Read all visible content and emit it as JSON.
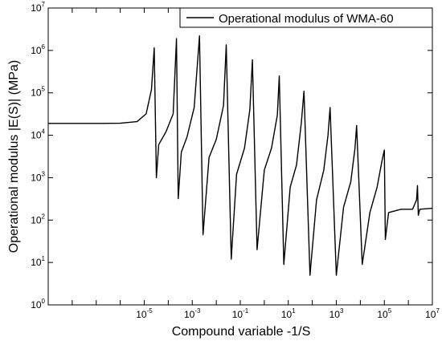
{
  "chart_data": {
    "type": "line",
    "title": "",
    "xlabel": "Compound variable -1/S",
    "ylabel": "Operational modulus |E(S)| (MPa)",
    "x_scale": "log",
    "y_scale": "log",
    "xlim": [
      1e-09,
      10000000.0
    ],
    "ylim": [
      1,
      10000000.0
    ],
    "x_ticks": [
      {
        "value": 1e-05,
        "base": "10",
        "exp": "-5"
      },
      {
        "value": 0.001,
        "base": "10",
        "exp": "-3"
      },
      {
        "value": 0.1,
        "base": "10",
        "exp": "-1"
      },
      {
        "value": 10.0,
        "base": "10",
        "exp": "1"
      },
      {
        "value": 1000.0,
        "base": "10",
        "exp": "3"
      },
      {
        "value": 100000.0,
        "base": "10",
        "exp": "5"
      },
      {
        "value": 10000000.0,
        "base": "10",
        "exp": "7"
      }
    ],
    "y_ticks": [
      {
        "value": 1,
        "base": "10",
        "exp": "0"
      },
      {
        "value": 10,
        "base": "10",
        "exp": "1"
      },
      {
        "value": 100.0,
        "base": "10",
        "exp": "2"
      },
      {
        "value": 1000.0,
        "base": "10",
        "exp": "3"
      },
      {
        "value": 10000.0,
        "base": "10",
        "exp": "4"
      },
      {
        "value": 100000.0,
        "base": "10",
        "exp": "5"
      },
      {
        "value": 1000000.0,
        "base": "10",
        "exp": "6"
      },
      {
        "value": 10000000.0,
        "base": "10",
        "exp": "7"
      }
    ],
    "grid": false,
    "legend_position": "top-right",
    "series": [
      {
        "name": "Operational modulus of  WMA-60",
        "color": "#000000",
        "points": [
          [
            1e-09,
            19000
          ],
          [
            1e-07,
            19000
          ],
          [
            1e-06,
            19200
          ],
          [
            5e-06,
            21000
          ],
          [
            1.2e-05,
            32000
          ],
          [
            2e-05,
            120000
          ],
          [
            2.6e-05,
            1150000
          ],
          [
            3.2e-05,
            1000
          ],
          [
            4e-05,
            6000
          ],
          [
            8e-05,
            12000
          ],
          [
            0.00016,
            32000
          ],
          [
            0.00022,
            1900000
          ],
          [
            0.00026,
            320
          ],
          [
            0.00035,
            4000
          ],
          [
            0.0006,
            9000
          ],
          [
            0.0012,
            45000
          ],
          [
            0.002,
            2200000
          ],
          [
            0.0028,
            45
          ],
          [
            0.005,
            3000
          ],
          [
            0.01,
            8000
          ],
          [
            0.02,
            50000
          ],
          [
            0.026,
            1350000
          ],
          [
            0.042,
            12
          ],
          [
            0.07,
            1200
          ],
          [
            0.15,
            5000
          ],
          [
            0.25,
            40000
          ],
          [
            0.32,
            600000
          ],
          [
            0.5,
            20
          ],
          [
            1,
            1500
          ],
          [
            2,
            5000
          ],
          [
            3.5,
            30000
          ],
          [
            4.2,
            250000
          ],
          [
            6.5,
            9
          ],
          [
            12,
            600
          ],
          [
            22,
            2000
          ],
          [
            35,
            20000
          ],
          [
            45,
            110000
          ],
          [
            80,
            5
          ],
          [
            150,
            300
          ],
          [
            300,
            1500
          ],
          [
            450,
            10000
          ],
          [
            550,
            45000
          ],
          [
            1000,
            5
          ],
          [
            2000,
            200
          ],
          [
            4000,
            800
          ],
          [
            6000,
            5000
          ],
          [
            7000,
            17000
          ],
          [
            12000.0,
            9
          ],
          [
            25000.0,
            150
          ],
          [
            50000.0,
            600
          ],
          [
            80000.0,
            2500
          ],
          [
            100000.0,
            4500
          ],
          [
            110000.0,
            35
          ],
          [
            150000.0,
            150
          ],
          [
            500000.0,
            180
          ],
          [
            1500000.0,
            180
          ],
          [
            2200000.0,
            300
          ],
          [
            2400000.0,
            650
          ],
          [
            2600000.0,
            130
          ],
          [
            3000000.0,
            180
          ],
          [
            10000000.0,
            190
          ]
        ]
      }
    ]
  }
}
